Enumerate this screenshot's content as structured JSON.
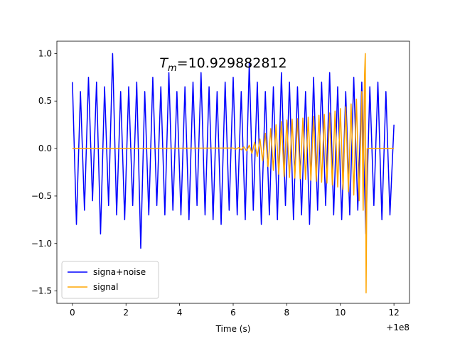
{
  "chart_data": {
    "type": "line",
    "annotation": {
      "symbol": "T",
      "subscript": "m",
      "text": "=10.929882812"
    },
    "x_label": "Time (s)",
    "x_offset_label": "+1e8",
    "xlim": [
      -0.58,
      12.58
    ],
    "ylim": [
      -1.63,
      1.13
    ],
    "xticks": [
      0,
      2,
      4,
      6,
      8,
      10,
      12
    ],
    "yticks": [
      {
        "value": 1.0,
        "label": "1.0"
      },
      {
        "value": 0.5,
        "label": "0.5"
      },
      {
        "value": 0,
        "label": "0.0"
      },
      {
        "value": -0.5,
        "label": "−0.5"
      },
      {
        "value": -1.0,
        "label": "−1.0"
      },
      {
        "value": -1.5,
        "label": "−1.5"
      }
    ],
    "legend": "lower left",
    "series": [
      {
        "name": "signa+noise",
        "color": "#0000ff",
        "x": [
          0,
          0.15,
          0.3,
          0.45,
          0.6,
          0.75,
          0.9,
          1.05,
          1.2,
          1.35,
          1.5,
          1.65,
          1.8,
          1.95,
          2.1,
          2.25,
          2.4,
          2.55,
          2.7,
          2.85,
          3.0,
          3.15,
          3.3,
          3.45,
          3.6,
          3.75,
          3.9,
          4.05,
          4.2,
          4.35,
          4.5,
          4.65,
          4.8,
          4.95,
          5.1,
          5.25,
          5.4,
          5.55,
          5.7,
          5.85,
          6.0,
          6.15,
          6.3,
          6.45,
          6.6,
          6.75,
          6.9,
          7.05,
          7.2,
          7.35,
          7.5,
          7.65,
          7.8,
          7.95,
          8.1,
          8.25,
          8.4,
          8.55,
          8.7,
          8.85,
          9.0,
          9.15,
          9.3,
          9.45,
          9.6,
          9.75,
          9.9,
          10.05,
          10.2,
          10.35,
          10.5,
          10.65,
          10.8,
          10.95,
          11.1,
          11.25,
          11.4,
          11.55,
          11.7,
          11.85,
          12.0
        ],
        "values": [
          0.7,
          -0.8,
          0.6,
          -0.65,
          0.75,
          -0.55,
          0.7,
          -0.9,
          0.65,
          -0.6,
          1.0,
          -0.7,
          0.6,
          -0.75,
          0.65,
          -0.6,
          0.7,
          -1.05,
          0.6,
          -0.7,
          0.75,
          -0.6,
          0.65,
          -0.7,
          0.8,
          -0.65,
          0.6,
          -0.7,
          0.65,
          -0.75,
          0.7,
          -0.6,
          0.8,
          -0.7,
          0.65,
          -0.75,
          0.6,
          -0.8,
          0.7,
          -0.65,
          0.75,
          -0.7,
          0.6,
          -0.75,
          0.9,
          -0.65,
          0.7,
          -0.8,
          0.6,
          -0.7,
          0.65,
          -0.75,
          0.8,
          -0.6,
          0.7,
          -0.75,
          0.65,
          -0.7,
          0.6,
          -0.8,
          0.75,
          -0.65,
          0.7,
          -0.6,
          0.8,
          -0.7,
          0.65,
          -0.75,
          0.6,
          -0.7,
          0.75,
          -0.65,
          0.7,
          -0.9,
          0.65,
          -0.6,
          0.7,
          -0.75,
          0.6,
          -0.7,
          0.25
        ]
      },
      {
        "name": "signal",
        "color": "#ffa500",
        "x": [
          0,
          6.0,
          6.1,
          6.2,
          6.3,
          6.4,
          6.5,
          6.6,
          6.7,
          6.8,
          6.9,
          7.0,
          7.1,
          7.2,
          7.3,
          7.4,
          7.5,
          7.6,
          7.7,
          7.8,
          7.9,
          8.0,
          8.1,
          8.2,
          8.3,
          8.4,
          8.5,
          8.6,
          8.7,
          8.8,
          8.9,
          9.0,
          9.1,
          9.2,
          9.3,
          9.4,
          9.5,
          9.6,
          9.7,
          9.8,
          9.9,
          10.0,
          10.1,
          10.2,
          10.3,
          10.4,
          10.5,
          10.6,
          10.7,
          10.8,
          10.85,
          10.9,
          10.93,
          10.96,
          11.0,
          12.0
        ],
        "values": [
          0,
          0.005,
          -0.007,
          0.01,
          -0.013,
          0.017,
          -0.025,
          0.035,
          -0.05,
          0.065,
          -0.085,
          0.1,
          -0.13,
          0.16,
          -0.19,
          0.21,
          -0.23,
          0.25,
          -0.27,
          0.285,
          -0.295,
          0.3,
          -0.305,
          0.31,
          -0.312,
          0.315,
          -0.318,
          0.32,
          -0.325,
          0.33,
          -0.335,
          0.34,
          -0.345,
          0.35,
          -0.355,
          0.36,
          -0.365,
          0.375,
          -0.385,
          0.395,
          -0.405,
          0.42,
          -0.43,
          0.44,
          -0.455,
          0.47,
          -0.49,
          0.52,
          -0.55,
          0.6,
          -0.65,
          0.75,
          1.0,
          -1.52,
          0,
          0
        ]
      }
    ]
  }
}
